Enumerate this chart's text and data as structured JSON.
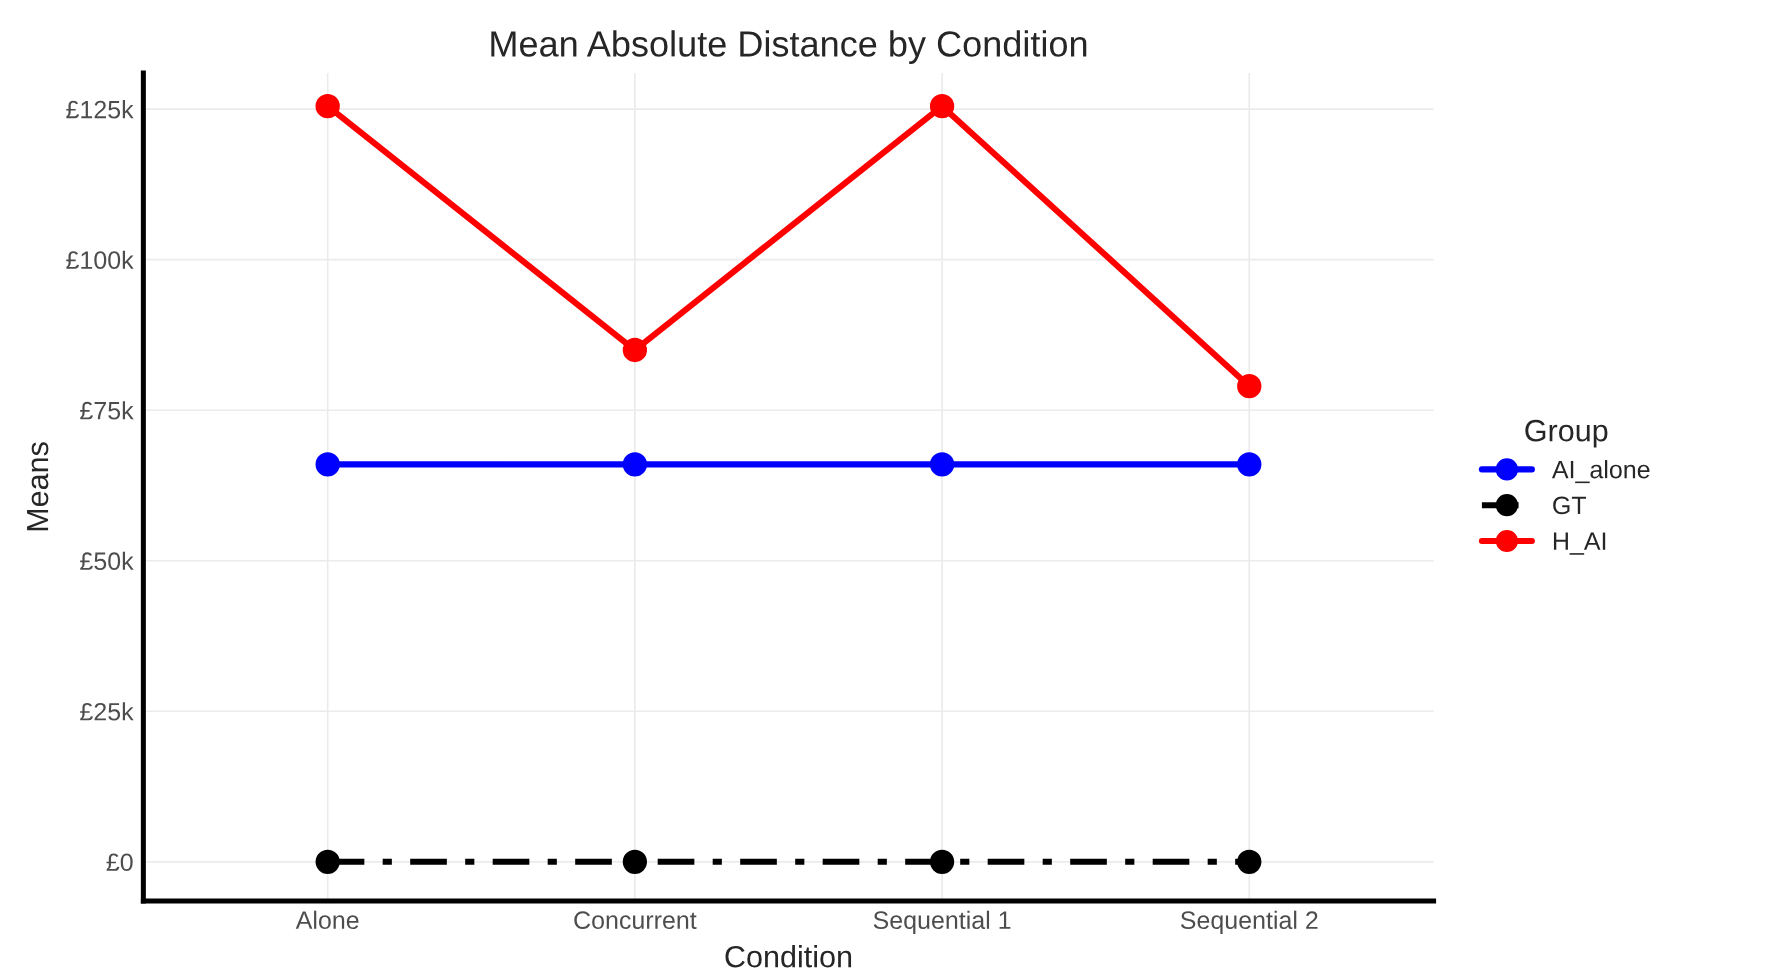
{
  "chart_data": {
    "type": "line",
    "title": "Mean Absolute Distance by Condition",
    "xlabel": "Condition",
    "ylabel": "Means",
    "legend_title": "Group",
    "categories": [
      "Alone",
      "Concurrent",
      "Sequential 1",
      "Sequential 2"
    ],
    "series": [
      {
        "name": "AI_alone",
        "color": "#0000ff",
        "values": [
          66000,
          66000,
          66000,
          66000
        ],
        "line_style": "solid"
      },
      {
        "name": "GT",
        "color": "#000000",
        "values": [
          0,
          0,
          0,
          0
        ],
        "line_style": "dashed"
      },
      {
        "name": "H_AI",
        "color": "#ff0000",
        "values": [
          125500,
          85000,
          125500,
          79000
        ],
        "line_style": "solid"
      }
    ],
    "ylim": [
      -6500,
      131000
    ],
    "yticks": [
      {
        "value": 0,
        "label": "£0"
      },
      {
        "value": 25000,
        "label": "£25k"
      },
      {
        "value": 50000,
        "label": "£50k"
      },
      {
        "value": 75000,
        "label": "£75k"
      },
      {
        "value": 100000,
        "label": "£100k"
      },
      {
        "value": 125000,
        "label": "£125k"
      }
    ],
    "grid": true,
    "legend": "right",
    "marker": "circle"
  }
}
